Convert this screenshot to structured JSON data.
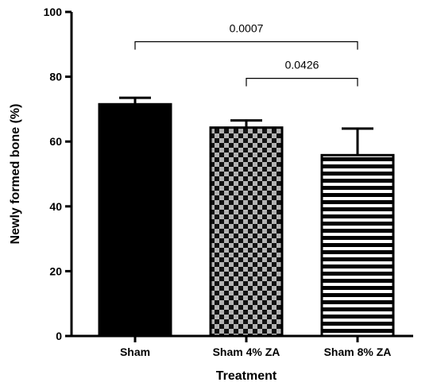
{
  "chart_data": {
    "type": "bar",
    "title": "",
    "xlabel": "Treatment",
    "ylabel": "Newly formed bone (%)",
    "ylim": [
      0,
      100
    ],
    "yticks": [
      "0",
      "20",
      "40",
      "60",
      "80",
      "100"
    ],
    "categories": [
      "Sham",
      "Sham 4% ZA",
      "Sham 8% ZA"
    ],
    "values": [
      71.5,
      64.3,
      55.8
    ],
    "error_upper": [
      73.5,
      66.5,
      64.0
    ],
    "fills": [
      "solid-black",
      "checkerboard-gray",
      "horizontal-stripes"
    ],
    "comparisons": [
      {
        "from": 0,
        "to": 2,
        "label": "0.0007"
      },
      {
        "from": 1,
        "to": 2,
        "label": "0.0426"
      }
    ]
  }
}
